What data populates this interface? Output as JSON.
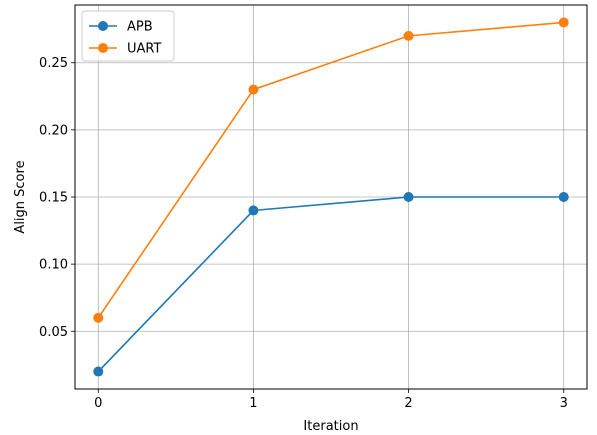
{
  "chart_data": {
    "type": "line",
    "title": "",
    "xlabel": "Iteration",
    "ylabel": "Align Score",
    "x": [
      0,
      1,
      2,
      3
    ],
    "xticks": [
      "0",
      "1",
      "2",
      "3"
    ],
    "yticks": [
      "0.05",
      "0.10",
      "0.15",
      "0.20",
      "0.25"
    ],
    "xlim": [
      -0.15,
      3.15
    ],
    "ylim": [
      0.007,
      0.293
    ],
    "grid": true,
    "legend_position": "top-left",
    "series": [
      {
        "name": "APB",
        "values": [
          0.02,
          0.14,
          0.15,
          0.15
        ],
        "color": "#1f77b4",
        "marker": "circle"
      },
      {
        "name": "UART",
        "values": [
          0.06,
          0.23,
          0.27,
          0.28
        ],
        "color": "#ff7f0e",
        "marker": "circle"
      }
    ]
  }
}
